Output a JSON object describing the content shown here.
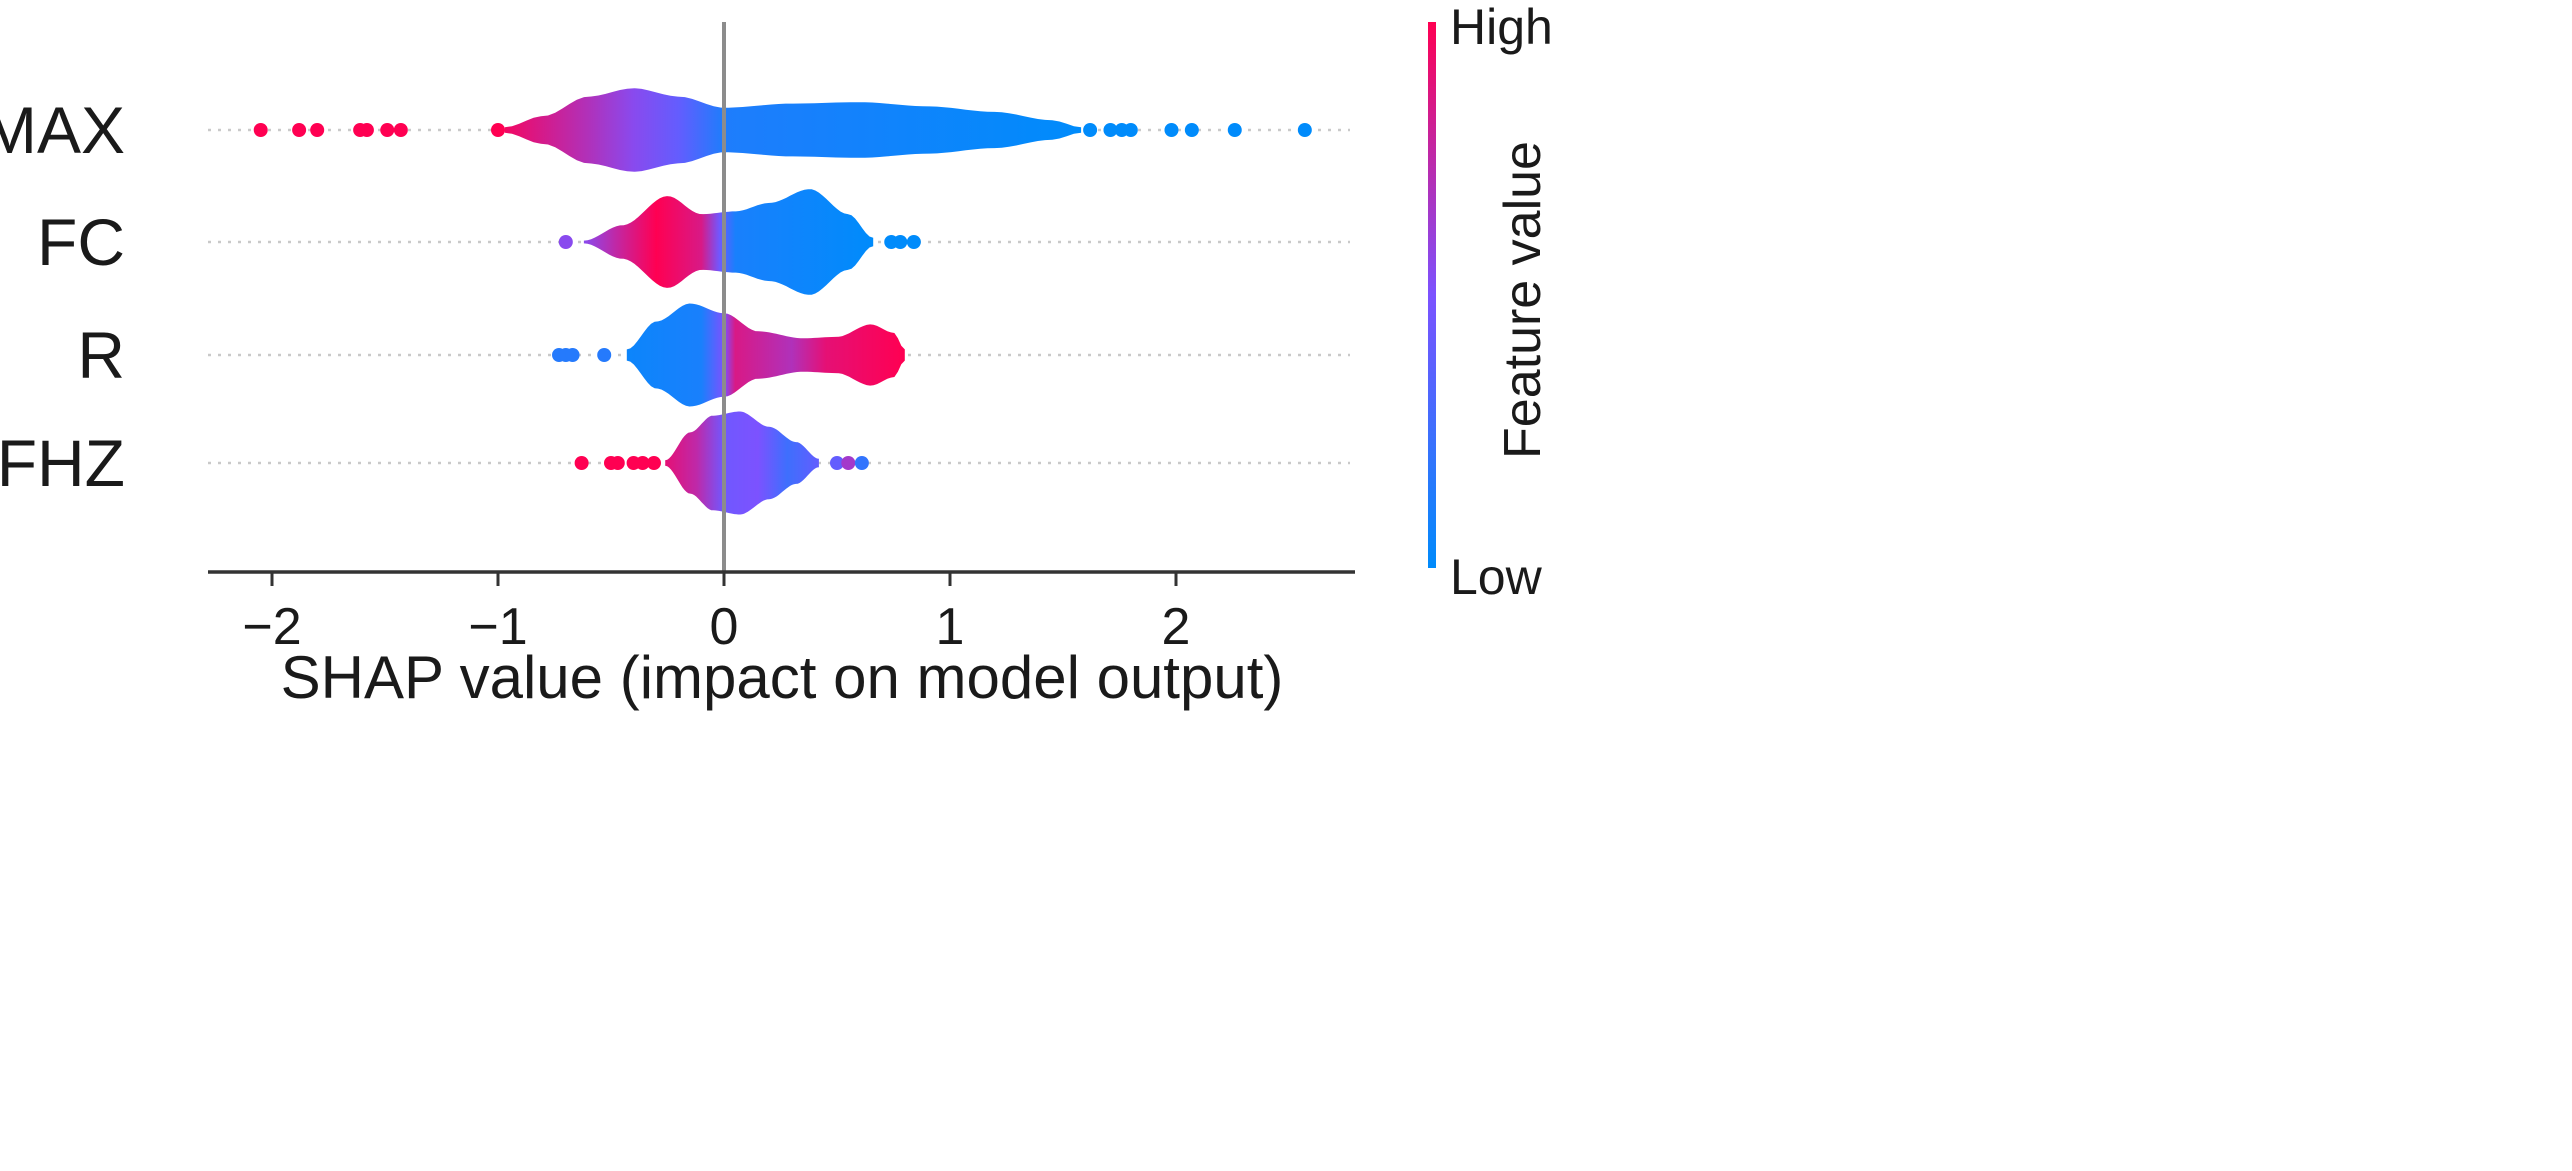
{
  "chart_data": {
    "type": "violin",
    "title": "",
    "xlabel": "SHAP value (impact on model output)",
    "ylabel": "",
    "xlim": [
      -2.3,
      2.8
    ],
    "xticks": [
      -2,
      -1,
      0,
      1,
      2
    ],
    "xtick_labels": [
      "−2",
      "−1",
      "0",
      "1",
      "2"
    ],
    "zero_line": true,
    "colorbar": {
      "title": "Feature value",
      "high_label": "High",
      "low_label": "Low",
      "high_color": "#ff0052",
      "low_color": "#008bfb",
      "position": "right"
    },
    "colors": {
      "high": "#ff0052",
      "low": "#008bfb",
      "axis": "#333333",
      "zero": "#8c8c8c"
    },
    "features": [
      {
        "name": "SMAX",
        "violin_range": [
          -0.97,
          1.58
        ],
        "profile": [
          [
            -0.97,
            0.02
          ],
          [
            -0.8,
            0.1
          ],
          [
            -0.6,
            0.24
          ],
          [
            -0.4,
            0.3
          ],
          [
            -0.2,
            0.24
          ],
          [
            0,
            0.16
          ],
          [
            0.3,
            0.19
          ],
          [
            0.6,
            0.2
          ],
          [
            0.9,
            0.17
          ],
          [
            1.2,
            0.13
          ],
          [
            1.45,
            0.07
          ],
          [
            1.58,
            0.02
          ]
        ],
        "color_stops": [
          [
            -0.97,
            0.95
          ],
          [
            -0.6,
            0.7
          ],
          [
            -0.4,
            0.55
          ],
          [
            -0.2,
            0.4
          ],
          [
            0,
            0.12
          ],
          [
            1.58,
            0.0
          ]
        ],
        "outliers": [
          {
            "x": -2.05,
            "v": 1
          },
          {
            "x": -1.88,
            "v": 1
          },
          {
            "x": -1.8,
            "v": 1
          },
          {
            "x": -1.61,
            "v": 1
          },
          {
            "x": -1.58,
            "v": 1
          },
          {
            "x": -1.49,
            "v": 1
          },
          {
            "x": -1.43,
            "v": 1
          },
          {
            "x": -1.0,
            "v": 1
          },
          {
            "x": 1.62,
            "v": 0
          },
          {
            "x": 1.71,
            "v": 0
          },
          {
            "x": 1.76,
            "v": 0
          },
          {
            "x": 1.8,
            "v": 0
          },
          {
            "x": 1.98,
            "v": 0
          },
          {
            "x": 2.07,
            "v": 0
          },
          {
            "x": 2.26,
            "v": 0
          },
          {
            "x": 2.57,
            "v": 0
          }
        ]
      },
      {
        "name": "FC",
        "violin_range": [
          -0.62,
          0.66
        ],
        "profile": [
          [
            -0.62,
            0.01
          ],
          [
            -0.45,
            0.12
          ],
          [
            -0.25,
            0.33
          ],
          [
            -0.1,
            0.2
          ],
          [
            0.05,
            0.22
          ],
          [
            0.2,
            0.28
          ],
          [
            0.38,
            0.38
          ],
          [
            0.55,
            0.2
          ],
          [
            0.66,
            0.03
          ]
        ],
        "color_stops": [
          [
            -0.62,
            0.55
          ],
          [
            -0.45,
            0.8
          ],
          [
            -0.3,
            1.0
          ],
          [
            -0.1,
            0.85
          ],
          [
            -0.02,
            0.45
          ],
          [
            0.05,
            0.1
          ],
          [
            0.66,
            0.0
          ]
        ],
        "outliers": [
          {
            "x": -0.7,
            "v": 0.55
          },
          {
            "x": 0.74,
            "v": 0
          },
          {
            "x": 0.78,
            "v": 0
          },
          {
            "x": 0.84,
            "v": 0
          }
        ]
      },
      {
        "name": "R",
        "violin_range": [
          -0.43,
          0.8
        ],
        "profile": [
          [
            -0.43,
            0.04
          ],
          [
            -0.3,
            0.24
          ],
          [
            -0.15,
            0.37
          ],
          [
            0,
            0.3
          ],
          [
            0.15,
            0.17
          ],
          [
            0.35,
            0.12
          ],
          [
            0.5,
            0.13
          ],
          [
            0.65,
            0.22
          ],
          [
            0.75,
            0.16
          ],
          [
            0.8,
            0.04
          ]
        ],
        "color_stops": [
          [
            -0.43,
            0.05
          ],
          [
            -0.1,
            0.1
          ],
          [
            0.0,
            0.5
          ],
          [
            0.05,
            0.85
          ],
          [
            0.3,
            0.7
          ],
          [
            0.45,
            0.9
          ],
          [
            0.8,
            1.0
          ]
        ],
        "outliers": [
          {
            "x": -0.73,
            "v": 0.15
          },
          {
            "x": -0.7,
            "v": 0.15
          },
          {
            "x": -0.67,
            "v": 0.15
          },
          {
            "x": -0.53,
            "v": 0.15
          }
        ]
      },
      {
        "name": "FHZ",
        "violin_range": [
          -0.26,
          0.42
        ],
        "profile": [
          [
            -0.26,
            0.02
          ],
          [
            -0.15,
            0.22
          ],
          [
            -0.05,
            0.34
          ],
          [
            0.07,
            0.37
          ],
          [
            0.2,
            0.26
          ],
          [
            0.32,
            0.15
          ],
          [
            0.42,
            0.03
          ]
        ],
        "color_stops": [
          [
            -0.26,
            0.9
          ],
          [
            -0.12,
            0.75
          ],
          [
            0.0,
            0.45
          ],
          [
            0.15,
            0.5
          ],
          [
            0.28,
            0.25
          ],
          [
            0.42,
            0.4
          ]
        ],
        "outliers": [
          {
            "x": -0.63,
            "v": 1
          },
          {
            "x": -0.5,
            "v": 1
          },
          {
            "x": -0.47,
            "v": 1
          },
          {
            "x": -0.4,
            "v": 1
          },
          {
            "x": -0.36,
            "v": 1
          },
          {
            "x": -0.31,
            "v": 1
          },
          {
            "x": 0.5,
            "v": 0.4
          },
          {
            "x": 0.55,
            "v": 0.65
          },
          {
            "x": 0.61,
            "v": 0.2
          }
        ]
      }
    ]
  }
}
